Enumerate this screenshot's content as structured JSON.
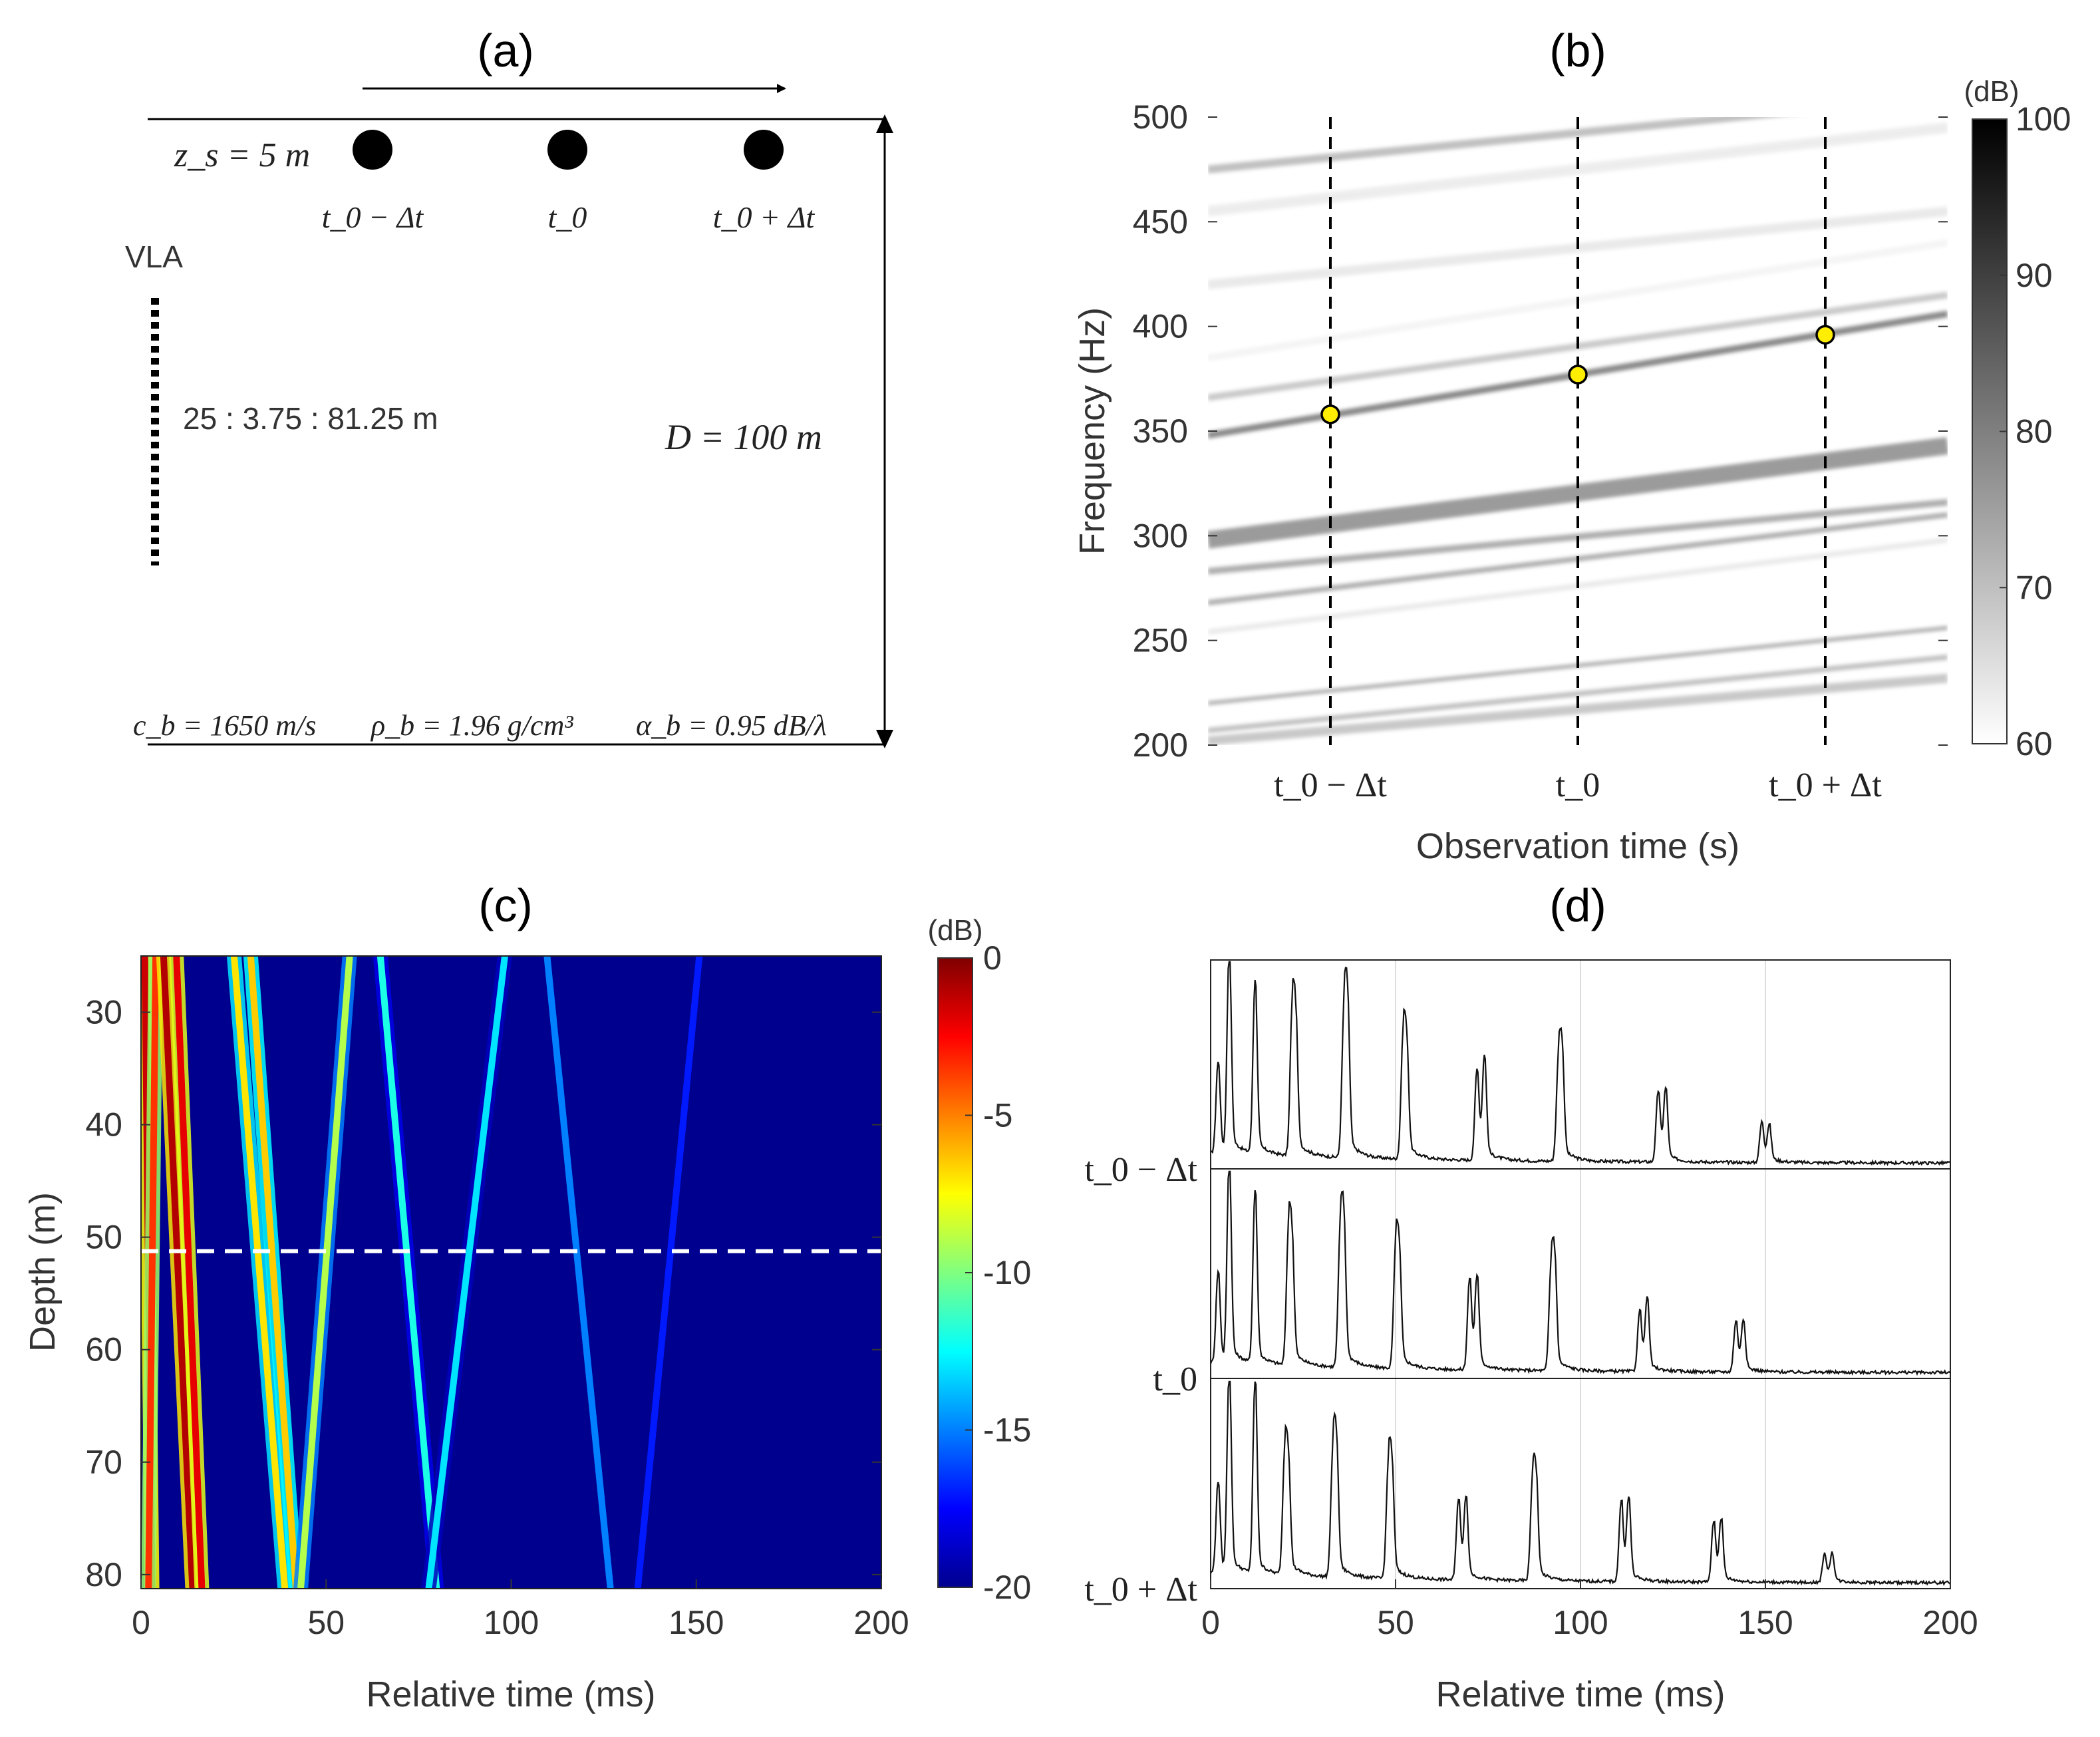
{
  "panels": {
    "a": {
      "label": "(a)"
    },
    "b": {
      "label": "(b)"
    },
    "c": {
      "label": "(c)"
    },
    "d": {
      "label": "(d)"
    }
  },
  "schematic": {
    "source_depth": "z_s = 5 m",
    "times": [
      "t_0 − Δt",
      "t_0",
      "t_0 + Δt"
    ],
    "array_label": "VLA",
    "array_depths": "25 : 3.75 : 81.25 m",
    "water_depth": "D = 100 m",
    "bottom": {
      "cb": "c_b = 1650 m/s",
      "rho": "ρ_b = 1.96 g/cm³",
      "alpha": "α_b = 0.95 dB/λ"
    }
  },
  "chart_data": [
    {
      "panel": "b",
      "type": "heatmap",
      "title": "",
      "xlabel": "Observation time (s)",
      "ylabel": "Frequency (Hz)",
      "xticklabels": [
        "t_0 − Δt",
        "t_0",
        "t_0 + Δt"
      ],
      "yticks": [
        200,
        250,
        300,
        350,
        400,
        450,
        500
      ],
      "ylim": [
        200,
        500
      ],
      "colorbar": {
        "label": "(dB)",
        "ticks": [
          60,
          70,
          80,
          90,
          100
        ],
        "range": [
          60,
          100
        ],
        "colormap": "gray-reversed"
      },
      "striations": [
        {
          "f_start": 475,
          "f_end": 510,
          "intensity": 0.35,
          "width": 12
        },
        {
          "f_start": 455,
          "f_end": 495,
          "intensity": 0.1,
          "width": 16
        },
        {
          "f_start": 420,
          "f_end": 455,
          "intensity": 0.12,
          "width": 14
        },
        {
          "f_start": 385,
          "f_end": 440,
          "intensity": 0.06,
          "width": 10
        },
        {
          "f_start": 366,
          "f_end": 415,
          "intensity": 0.3,
          "width": 10
        },
        {
          "f_start": 348,
          "f_end": 406,
          "intensity": 0.65,
          "width": 10
        },
        {
          "f_start": 298,
          "f_end": 343,
          "intensity": 0.55,
          "width": 26
        },
        {
          "f_start": 283,
          "f_end": 316,
          "intensity": 0.45,
          "width": 10
        },
        {
          "f_start": 268,
          "f_end": 310,
          "intensity": 0.45,
          "width": 8
        },
        {
          "f_start": 254,
          "f_end": 298,
          "intensity": 0.12,
          "width": 8
        },
        {
          "f_start": 220,
          "f_end": 256,
          "intensity": 0.45,
          "width": 6
        },
        {
          "f_start": 207,
          "f_end": 242,
          "intensity": 0.35,
          "width": 8
        },
        {
          "f_start": 202,
          "f_end": 232,
          "intensity": 0.3,
          "width": 14
        }
      ],
      "markers": [
        {
          "x_index": 0,
          "freq": 358,
          "color": "#ffee00"
        },
        {
          "x_index": 1,
          "freq": 377,
          "color": "#ffee00"
        },
        {
          "x_index": 2,
          "freq": 396,
          "color": "#ffee00"
        }
      ],
      "grid": false
    },
    {
      "panel": "c",
      "type": "heatmap",
      "title": "",
      "xlabel": "Relative time (ms)",
      "ylabel": "Depth (m)",
      "xticks": [
        0,
        50,
        100,
        150,
        200
      ],
      "xlim": [
        0,
        200
      ],
      "yticks": [
        30,
        40,
        50,
        60,
        70,
        80
      ],
      "ylim": [
        25,
        81.25
      ],
      "reference_depth": 51.25,
      "colorbar": {
        "label": "(dB)",
        "ticks": [
          0,
          -5,
          -10,
          -15,
          -20
        ],
        "range": [
          -20,
          0
        ],
        "colormap": "jet"
      },
      "arrivals": [
        {
          "t_top": 1,
          "t_bottom": 3,
          "level": -1.5
        },
        {
          "t_top": 4,
          "t_bottom": 2,
          "level": -3.5
        },
        {
          "t_top": 6,
          "t_bottom": 14,
          "level": -1.0
        },
        {
          "t_top": 9.5,
          "t_bottom": 16.5,
          "level": -2.0
        },
        {
          "t_top": 25,
          "t_bottom": 39,
          "level": -7.0
        },
        {
          "t_top": 29.5,
          "t_bottom": 42,
          "level": -6.5
        },
        {
          "t_top": 56.5,
          "t_bottom": 43,
          "level": -9.0
        },
        {
          "t_top": 64.5,
          "t_bottom": 80,
          "level": -12.0
        },
        {
          "t_top": 98.5,
          "t_bottom": 77.5,
          "level": -13.0
        },
        {
          "t_top": 109.5,
          "t_bottom": 127,
          "level": -15.0
        },
        {
          "t_top": 151,
          "t_bottom": 134,
          "level": -17.0
        }
      ]
    },
    {
      "panel": "d",
      "type": "line",
      "title": "",
      "xlabel": "Relative time (ms)",
      "ylabel": "",
      "xticks": [
        0,
        50,
        100,
        150,
        200
      ],
      "xlim": [
        0,
        200
      ],
      "grid": true,
      "series": [
        {
          "name": "t_0 − Δt",
          "peaks": [
            [
              2,
              0.45
            ],
            [
              5,
              1.0
            ],
            [
              12,
              0.85
            ],
            [
              22,
              0.65
            ],
            [
              23,
              0.6
            ],
            [
              36,
              0.65
            ],
            [
              37,
              0.7
            ],
            [
              52,
              0.55
            ],
            [
              53,
              0.5
            ],
            [
              72,
              0.45
            ],
            [
              74,
              0.5
            ],
            [
              94,
              0.45
            ],
            [
              95,
              0.5
            ],
            [
              121,
              0.35
            ],
            [
              123,
              0.35
            ],
            [
              149,
              0.2
            ],
            [
              151,
              0.18
            ]
          ]
        },
        {
          "name": "t_0",
          "peaks": [
            [
              2,
              0.45
            ],
            [
              5,
              1.0
            ],
            [
              12,
              0.85
            ],
            [
              21,
              0.6
            ],
            [
              22,
              0.55
            ],
            [
              35,
              0.6
            ],
            [
              36,
              0.65
            ],
            [
              50,
              0.55
            ],
            [
              51,
              0.5
            ],
            [
              70,
              0.45
            ],
            [
              72,
              0.45
            ],
            [
              92,
              0.45
            ],
            [
              93,
              0.5
            ],
            [
              116,
              0.3
            ],
            [
              118,
              0.35
            ],
            [
              142,
              0.25
            ],
            [
              144,
              0.25
            ]
          ]
        },
        {
          "name": "t_0 + Δt",
          "peaks": [
            [
              2,
              0.45
            ],
            [
              5,
              1.0
            ],
            [
              12,
              0.95
            ],
            [
              20,
              0.55
            ],
            [
              21,
              0.5
            ],
            [
              33,
              0.55
            ],
            [
              34,
              0.6
            ],
            [
              48,
              0.5
            ],
            [
              49,
              0.5
            ],
            [
              67,
              0.4
            ],
            [
              69,
              0.4
            ],
            [
              87,
              0.45
            ],
            [
              88,
              0.45
            ],
            [
              111,
              0.4
            ],
            [
              113,
              0.4
            ],
            [
              136,
              0.3
            ],
            [
              138,
              0.3
            ],
            [
              166,
              0.14
            ],
            [
              168,
              0.14
            ]
          ]
        }
      ]
    }
  ]
}
